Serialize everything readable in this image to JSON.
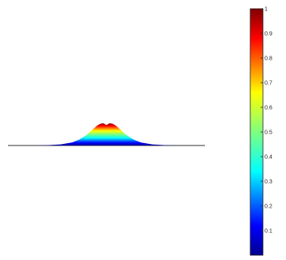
{
  "chart_data": {
    "type": "area",
    "title": "",
    "xlabel": "",
    "ylabel": "",
    "description_values": {
      "x": [
        -1.0,
        -0.8,
        -0.6,
        -0.45,
        -0.35,
        -0.25,
        -0.18,
        -0.12,
        -0.08,
        -0.04,
        0.0,
        0.04,
        0.08,
        0.12,
        0.18,
        0.25,
        0.35,
        0.45,
        0.6,
        0.8,
        1.0
      ],
      "y": [
        0.0,
        0.01,
        0.05,
        0.14,
        0.28,
        0.5,
        0.72,
        0.9,
        0.98,
        1.0,
        0.92,
        1.0,
        0.98,
        0.9,
        0.72,
        0.5,
        0.28,
        0.14,
        0.05,
        0.01,
        0.0
      ]
    },
    "colormap": "jet",
    "colorbar": {
      "range": [
        0,
        1
      ],
      "ticks": [
        "0.1",
        "0.2",
        "0.3",
        "0.4",
        "0.5",
        "0.6",
        "0.7",
        "0.8",
        "0.9",
        "1"
      ],
      "tick_values": [
        0.1,
        0.2,
        0.3,
        0.4,
        0.5,
        0.6,
        0.7,
        0.8,
        0.9,
        1.0
      ]
    },
    "grid": false,
    "legend": "none"
  }
}
